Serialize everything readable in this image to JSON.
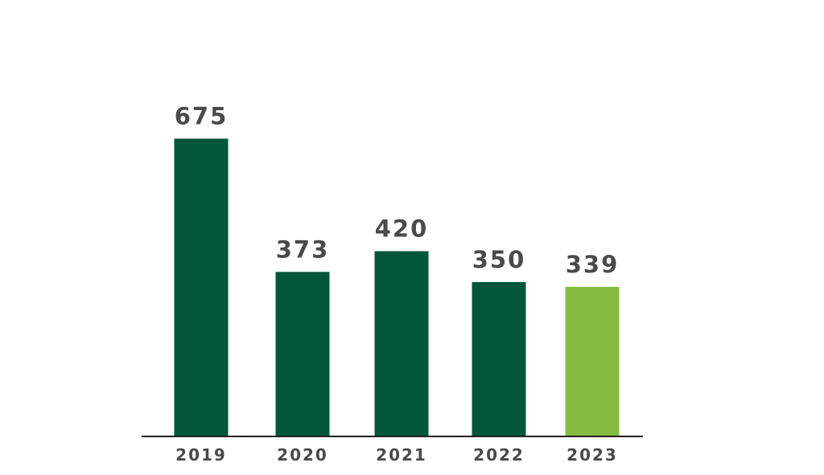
{
  "chart_data": {
    "type": "bar",
    "categories": [
      "2019",
      "2020",
      "2021",
      "2022",
      "2023"
    ],
    "values": [
      675,
      373,
      420,
      350,
      339
    ],
    "data_labels": [
      "675",
      "373",
      "420",
      "350",
      "339"
    ],
    "title": "",
    "xlabel": "",
    "ylabel": "",
    "ylim": [
      0,
      700
    ],
    "grid": false,
    "legend": "none",
    "colors": {
      "default_bar": "#02573a",
      "highlight_bar": "#86bd41",
      "axis": "#222222",
      "label_text": "#4a4a4a"
    },
    "highlight_index": 4
  }
}
